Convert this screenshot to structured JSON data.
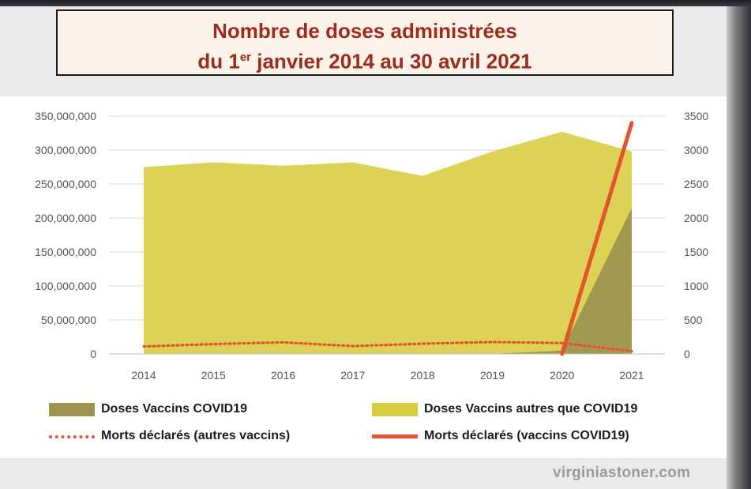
{
  "title": {
    "line1": "Nombre de doses administrées",
    "line2_prefix": "du 1",
    "line2_sup": "er",
    "line2_suffix": " janvier 2014 au 30 avril 2021"
  },
  "watermark": "virginiastoner.com",
  "legend": {
    "covid_doses": "Doses Vaccins COVID19",
    "other_doses": "Doses Vaccins autres que COVID19",
    "deaths_other": "Morts déclarés (autres vaccins)",
    "deaths_covid": "Morts déclarés (vaccins COVID19)"
  },
  "colors": {
    "other_area": "#d9cc3f",
    "covid_area": "#9c9450",
    "deaths_line": "#e4532c"
  },
  "chart_data": {
    "type": "area",
    "categories": [
      "2014",
      "2015",
      "2016",
      "2017",
      "2018",
      "2019",
      "2020",
      "2021"
    ],
    "series": [
      {
        "name": "Doses Vaccins COVID19",
        "kind": "area",
        "axis": "left",
        "values": [
          0,
          0,
          0,
          0,
          0,
          0,
          5000000,
          215000000
        ]
      },
      {
        "name": "Doses Vaccins autres que COVID19",
        "kind": "area",
        "axis": "left",
        "values": [
          275000000,
          282000000,
          277000000,
          282000000,
          262000000,
          298000000,
          327000000,
          298000000
        ]
      },
      {
        "name": "Morts déclarés (autres vaccins)",
        "kind": "dotted-line",
        "axis": "right",
        "values": [
          110,
          145,
          170,
          115,
          150,
          175,
          160,
          40
        ]
      },
      {
        "name": "Morts déclarés (vaccins COVID19)",
        "kind": "line",
        "axis": "right",
        "values": [
          null,
          null,
          null,
          null,
          null,
          null,
          0,
          3400
        ]
      }
    ],
    "left_axis": {
      "ylim": [
        0,
        350000000
      ],
      "ticks": [
        "0",
        "50,000,000",
        "100,000,000",
        "150,000,000",
        "200,000,000",
        "250,000,000",
        "300,000,000",
        "350,000,000"
      ]
    },
    "right_axis": {
      "ylim": [
        0,
        3500
      ],
      "ticks": [
        "0",
        "500",
        "1000",
        "1500",
        "2000",
        "2500",
        "3000",
        "3500"
      ]
    },
    "grid": true,
    "legend_position": "bottom"
  }
}
